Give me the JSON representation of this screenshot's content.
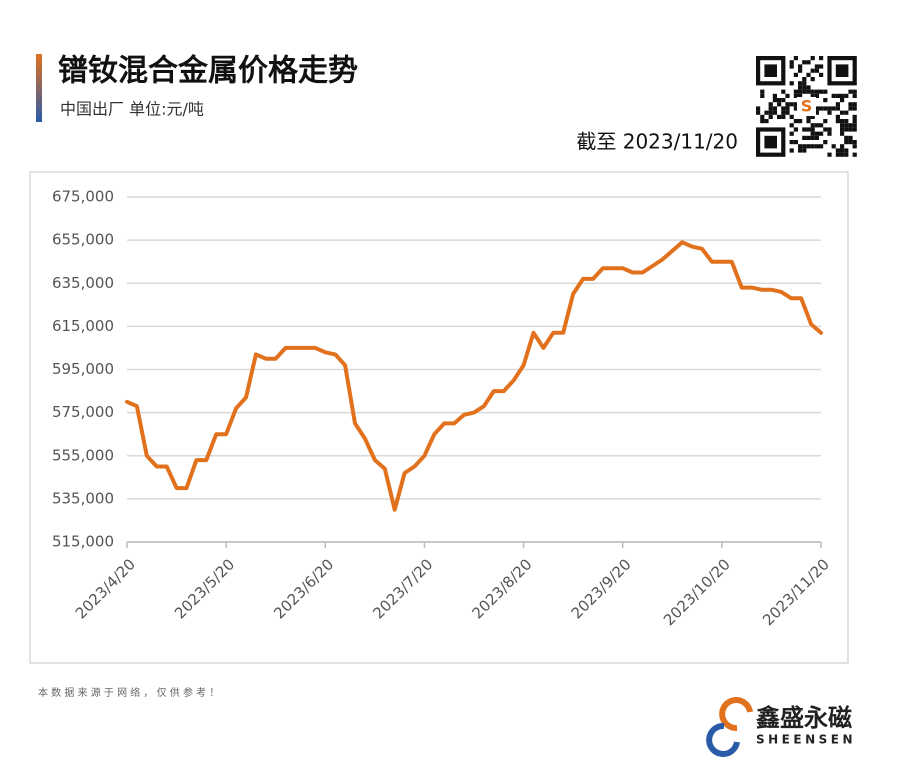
{
  "chart_data": {
    "type": "line",
    "title": "镨钕混合金属价格走势",
    "subtitle": "中国出厂  单位:元/吨",
    "annotation": "截至 2023/11/20",
    "categories": [
      "2023/4/20",
      null,
      null,
      null,
      null,
      null,
      null,
      null,
      null,
      null,
      "2023/5/20",
      null,
      null,
      null,
      null,
      null,
      null,
      null,
      null,
      null,
      "2023/6/20",
      null,
      null,
      null,
      null,
      null,
      null,
      null,
      null,
      null,
      "2023/7/20",
      null,
      null,
      null,
      null,
      null,
      null,
      null,
      null,
      null,
      "2023/8/20",
      null,
      null,
      null,
      null,
      null,
      null,
      null,
      null,
      null,
      "2023/9/20",
      null,
      null,
      null,
      null,
      null,
      null,
      null,
      null,
      null,
      "2023/10/20",
      null,
      null,
      null,
      null,
      null,
      null,
      null,
      null,
      null,
      "2023/11/20"
    ],
    "series": [
      {
        "color": "#e2711d",
        "values": [
          580000,
          578000,
          555000,
          550000,
          550000,
          540000,
          540000,
          553000,
          553000,
          565000,
          565000,
          577000,
          582000,
          602000,
          600000,
          600000,
          605000,
          605000,
          605000,
          605000,
          603000,
          602000,
          597000,
          570000,
          563000,
          553000,
          549000,
          530000,
          547000,
          550000,
          555000,
          565000,
          570000,
          570000,
          574000,
          575000,
          578000,
          585000,
          585000,
          590000,
          597000,
          612000,
          605000,
          612000,
          612000,
          630000,
          637000,
          637000,
          642000,
          642000,
          642000,
          640000,
          640000,
          643000,
          646000,
          650000,
          654000,
          652000,
          651000,
          645000,
          645000,
          645000,
          633000,
          633000,
          632000,
          632000,
          631000,
          628000,
          628000,
          616000,
          612000
        ]
      }
    ],
    "ylim": [
      515000,
      675000
    ],
    "yticks": [
      {
        "value": 515000,
        "label": "515,000"
      },
      {
        "value": 535000,
        "label": "535,000"
      },
      {
        "value": 555000,
        "label": "555,000"
      },
      {
        "value": 575000,
        "label": "575,000"
      },
      {
        "value": 595000,
        "label": "595,000"
      },
      {
        "value": 615000,
        "label": "615,000"
      },
      {
        "value": 635000,
        "label": "635,000"
      },
      {
        "value": 655000,
        "label": "655,000"
      },
      {
        "value": 675000,
        "label": "675,000"
      }
    ],
    "grid": true
  },
  "footer": {
    "note": "本 数 据 来 源 于 网 络 ， 仅 供 参 考 ！",
    "brand_cn": "鑫盛永磁",
    "brand_en": "SHEENSEN"
  }
}
